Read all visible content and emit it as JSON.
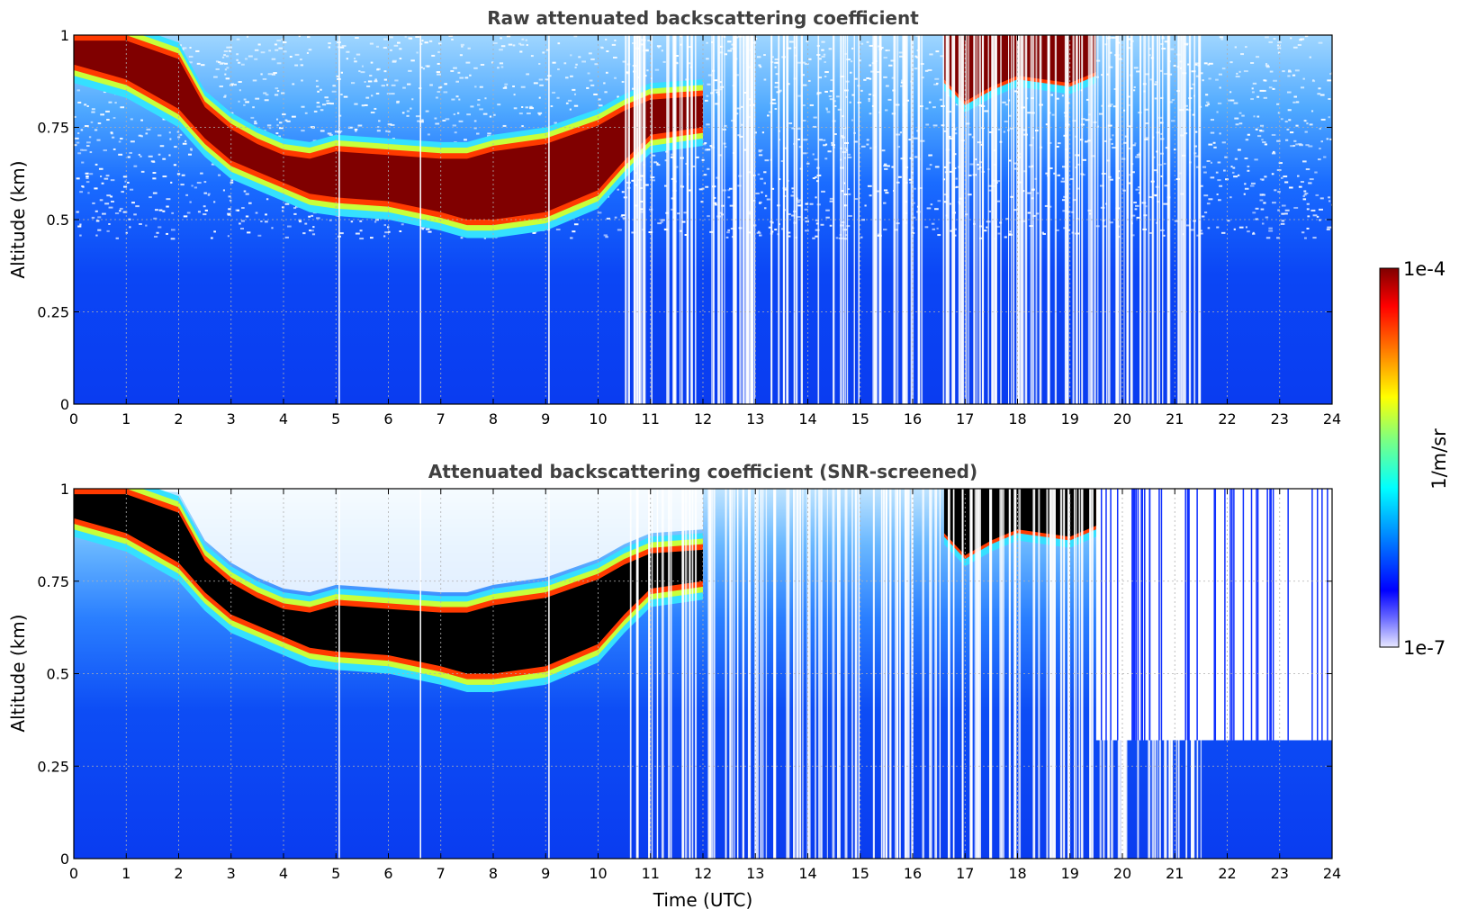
{
  "chart_data": [
    {
      "type": "heatmap",
      "title": "Raw attenuated backscattering coefficient",
      "xlabel": "",
      "ylabel": "Altitude (km)",
      "xlim": [
        0,
        24
      ],
      "ylim": [
        0,
        1
      ],
      "x_ticks": [
        0,
        1,
        2,
        3,
        4,
        5,
        6,
        7,
        8,
        9,
        10,
        11,
        12,
        13,
        14,
        15,
        16,
        17,
        18,
        19,
        20,
        21,
        22,
        23,
        24
      ],
      "y_ticks": [
        0,
        0.25,
        0.5,
        0.75,
        1
      ],
      "y_tick_labels": [
        "0",
        "0.25",
        "0.5",
        "0.75",
        "1"
      ],
      "grid": true,
      "cloud_layer": {
        "hours": [
          0,
          1,
          2,
          2.5,
          3,
          3.5,
          4,
          4.5,
          5,
          6,
          7,
          7.5,
          8,
          9,
          10,
          10.5,
          11,
          12
        ],
        "base_km": [
          0.92,
          0.88,
          0.8,
          0.72,
          0.66,
          0.63,
          0.6,
          0.57,
          0.56,
          0.55,
          0.52,
          0.5,
          0.5,
          0.52,
          0.58,
          0.66,
          0.73,
          0.75
        ],
        "top_km": [
          1.0,
          1.0,
          0.95,
          0.82,
          0.76,
          0.72,
          0.69,
          0.68,
          0.7,
          0.69,
          0.68,
          0.68,
          0.7,
          0.72,
          0.77,
          0.81,
          0.84,
          0.85
        ]
      },
      "late_cloud": {
        "hours": [
          16.6,
          17,
          17.5,
          18,
          18.5,
          19,
          19.5
        ],
        "base_km": [
          0.88,
          0.82,
          0.86,
          0.89,
          0.88,
          0.87,
          0.9
        ],
        "top_km": [
          1.0,
          1.0,
          1.0,
          1.0,
          1.0,
          1.0,
          1.0
        ]
      }
    },
    {
      "type": "heatmap",
      "title": "Attenuated backscattering coefficient (SNR-screened)",
      "xlabel": "Time (UTC)",
      "ylabel": "Altitude (km)",
      "xlim": [
        0,
        24
      ],
      "ylim": [
        0,
        1
      ],
      "x_ticks": [
        0,
        1,
        2,
        3,
        4,
        5,
        6,
        7,
        8,
        9,
        10,
        11,
        12,
        13,
        14,
        15,
        16,
        17,
        18,
        19,
        20,
        21,
        22,
        23,
        24
      ],
      "y_ticks": [
        0,
        0.25,
        0.5,
        0.75,
        1
      ],
      "y_tick_labels": [
        "0",
        "0.25",
        "0.5",
        "0.75",
        "1"
      ],
      "grid": true,
      "screen_ceiling_km_after_19_5": 0.32
    }
  ],
  "colorbar": {
    "label": "1/m/sr",
    "min_label": "1e-7",
    "max_label": "1e-4",
    "colormap": "jet",
    "colors": [
      "#e8e8ff",
      "#0000ff",
      "#00a0ff",
      "#00ffff",
      "#7fff7f",
      "#ffff00",
      "#ff7f00",
      "#ff0000",
      "#800000"
    ]
  }
}
